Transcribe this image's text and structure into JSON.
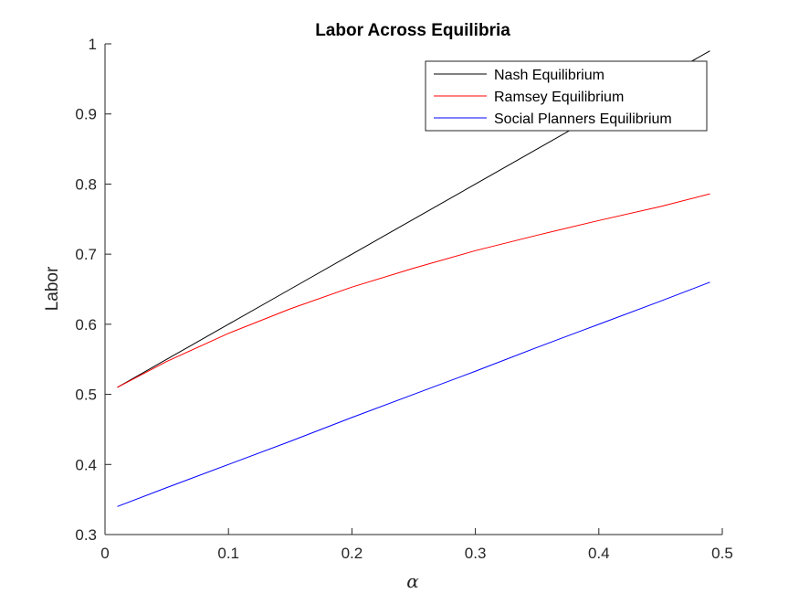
{
  "chart_data": {
    "type": "line",
    "title": "Labor Across Equilibria",
    "xlabel": "α",
    "ylabel": "Labor",
    "xlim": [
      0,
      0.5
    ],
    "ylim": [
      0.3,
      1
    ],
    "xticks": [
      0,
      0.1,
      0.2,
      0.3,
      0.4,
      0.5
    ],
    "xtick_labels": [
      "0",
      "0.1",
      "0.2",
      "0.3",
      "0.4",
      "0.5"
    ],
    "yticks": [
      0.3,
      0.4,
      0.5,
      0.6,
      0.7,
      0.8,
      0.9,
      1
    ],
    "ytick_labels": [
      "0.3",
      "0.4",
      "0.5",
      "0.6",
      "0.7",
      "0.8",
      "0.9",
      "1"
    ],
    "grid": false,
    "legend_position": "top-right",
    "x": [
      0.01,
      0.05,
      0.1,
      0.15,
      0.2,
      0.25,
      0.3,
      0.35,
      0.4,
      0.45,
      0.49
    ],
    "series": [
      {
        "name": "Nash Equilibrium",
        "color": "#000000",
        "values": [
          0.51,
          0.55,
          0.6,
          0.65,
          0.7,
          0.75,
          0.8,
          0.85,
          0.9,
          0.95,
          0.99
        ]
      },
      {
        "name": "Ramsey Equilibrium",
        "color": "#ff0000",
        "values": [
          0.51,
          0.547,
          0.587,
          0.622,
          0.653,
          0.68,
          0.705,
          0.727,
          0.748,
          0.768,
          0.786
        ]
      },
      {
        "name": "Social Planners Equilibrium",
        "color": "#0000ff",
        "values": [
          0.34,
          0.367,
          0.4,
          0.433,
          0.467,
          0.5,
          0.533,
          0.567,
          0.6,
          0.633,
          0.66
        ]
      }
    ]
  }
}
